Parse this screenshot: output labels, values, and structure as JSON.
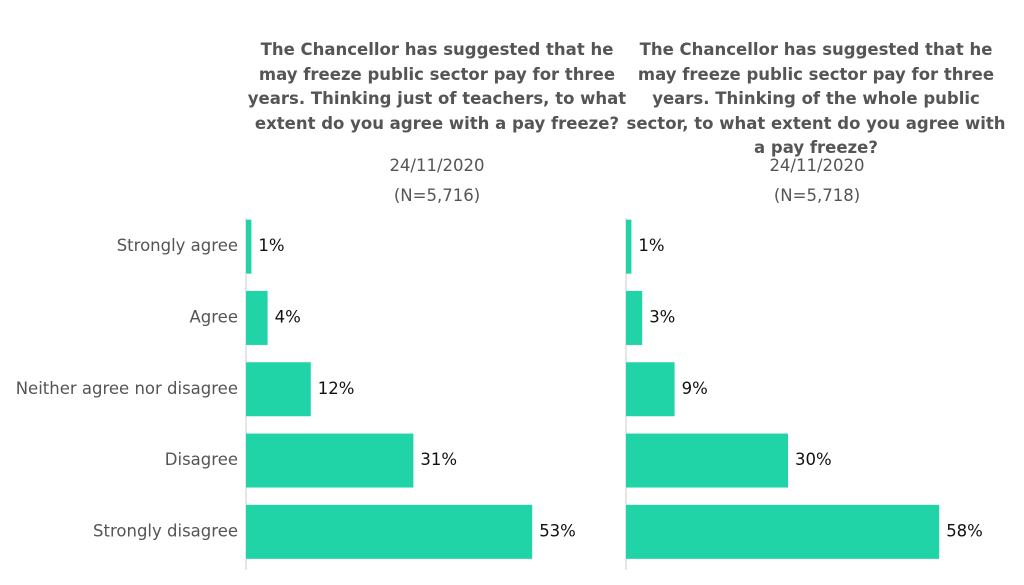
{
  "chart_data": [
    {
      "type": "bar",
      "orientation": "horizontal",
      "title": "The Chancellor has suggested that he may freeze public sector pay for three years. Thinking just of teachers, to what extent do you agree with a pay freeze?",
      "subtitle": "24/11/2020",
      "note": "(N=5,716)",
      "categories": [
        "Strongly agree",
        "Agree",
        "Neither agree nor disagree",
        "Disagree",
        "Strongly disagree"
      ],
      "values": [
        1,
        4,
        12,
        31,
        53
      ],
      "value_labels": [
        "1%",
        "4%",
        "12%",
        "31%",
        "53%"
      ],
      "color": "#21d4a8"
    },
    {
      "type": "bar",
      "orientation": "horizontal",
      "title": "The Chancellor has suggested that he may freeze public sector pay for three years. Thinking of the whole public sector, to what extent do you agree with a pay freeze?",
      "subtitle": "24/11/2020",
      "note": "(N=5,718)",
      "values": [
        1,
        3,
        9,
        30,
        58
      ],
      "value_labels": [
        "1%",
        "3%",
        "9%",
        "30%",
        "58%"
      ],
      "color": "#21d4a8"
    }
  ]
}
